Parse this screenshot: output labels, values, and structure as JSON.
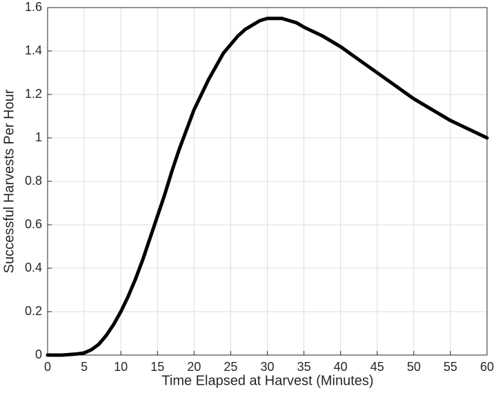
{
  "chart_data": {
    "type": "line",
    "x_label": "Time Elapsed at Harvest (Minutes)",
    "y_label": "Successful Harvests Per Hour",
    "x": [
      0,
      2,
      4,
      5,
      6,
      7,
      8,
      9,
      10,
      11,
      12,
      13,
      14,
      15,
      16,
      17,
      18,
      19,
      20,
      21,
      22,
      23,
      24,
      25,
      26,
      27,
      28,
      29,
      30,
      31,
      32,
      33,
      34,
      35,
      37.5,
      40,
      42.5,
      45,
      47.5,
      50,
      52.5,
      55,
      57.5,
      60
    ],
    "values": [
      0,
      0,
      0.005,
      0.01,
      0.025,
      0.05,
      0.09,
      0.14,
      0.2,
      0.27,
      0.35,
      0.44,
      0.54,
      0.64,
      0.74,
      0.85,
      0.95,
      1.04,
      1.13,
      1.2,
      1.27,
      1.33,
      1.39,
      1.43,
      1.47,
      1.5,
      1.52,
      1.54,
      1.55,
      1.55,
      1.55,
      1.54,
      1.53,
      1.51,
      1.47,
      1.42,
      1.36,
      1.3,
      1.24,
      1.18,
      1.13,
      1.08,
      1.04,
      1.0
    ],
    "color": "#000000",
    "xlim": [
      0,
      60
    ],
    "xticks": [
      0,
      5,
      10,
      15,
      20,
      25,
      30,
      35,
      40,
      45,
      50,
      55,
      60
    ],
    "ylim": [
      0,
      1.6
    ],
    "yticks": [
      0,
      0.2,
      0.4,
      0.6,
      0.8,
      1,
      1.2,
      1.4,
      1.6
    ],
    "grid": true
  }
}
